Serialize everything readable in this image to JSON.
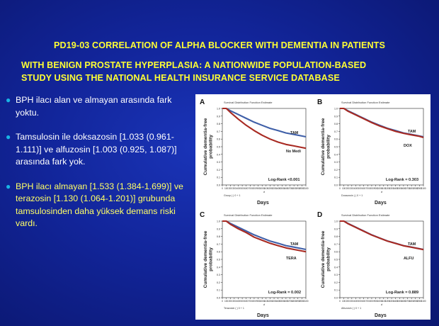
{
  "title": {
    "line1": "PD19-03    CORRELATION OF ALPHA BLOCKER WITH DEMENTIA IN PATIENTS",
    "line2": "WITH BENIGN PROSTATE HYPERPLASIA: A NATIONWIDE POPULATION-BASED",
    "line3": "STUDY USING THE NATIONAL HEALTH INSURANCE SERVICE DATABASE"
  },
  "bullets": [
    {
      "text": "BPH ilacı alan ve almayan arasında fark yoktu."
    },
    {
      "text": "Tamsulosin ile doksazosin [1.033 (0.961-1.111)] ve alfuzosin [1.003 (0.925, 1.087)] arasında fark yok."
    },
    {
      "text": " BPH ilacı almayan [1.533 (1.384-1.699)] ve terazosin [1.130 (1.064-1.201)] grubunda tamsulosinden daha yüksek demans riski vardı."
    }
  ],
  "colors": {
    "accent_title": "#ffff33",
    "bullet_dot": "#19b5e6",
    "tam": "#3f5fa8",
    "other": "#a82a22"
  },
  "chart_data": [
    {
      "type": "line",
      "panel": "A",
      "header": "Survival Distribution Function Estimate",
      "ylabel": "Cumulative dementia-free probability",
      "xlabel": "Days",
      "series": [
        {
          "name": "TAM",
          "x": [
            0,
            100,
            200,
            400,
            600,
            800,
            1000,
            1200,
            1400,
            1600,
            1800,
            2000,
            2100
          ],
          "y": [
            1.0,
            1.0,
            0.97,
            0.92,
            0.87,
            0.82,
            0.78,
            0.74,
            0.71,
            0.68,
            0.66,
            0.64,
            0.63
          ]
        },
        {
          "name": "No Medi",
          "x": [
            0,
            100,
            200,
            400,
            600,
            800,
            1000,
            1200,
            1400,
            1600,
            1800,
            2000,
            2100
          ],
          "y": [
            1.0,
            1.0,
            0.95,
            0.86,
            0.78,
            0.71,
            0.65,
            0.6,
            0.56,
            0.53,
            0.51,
            0.49,
            0.48
          ]
        }
      ],
      "annotation": "Log-Rank <0.001",
      "stratum": "Group ( ) 0 + 1"
    },
    {
      "type": "line",
      "panel": "B",
      "header": "Survival Distribution Function Estimate",
      "ylabel": "Cumulative dementia-free probability",
      "xlabel": "Days",
      "series": [
        {
          "name": "TAM",
          "x": [
            0,
            100,
            200,
            400,
            600,
            800,
            1000,
            1200,
            1400,
            1600,
            1800,
            2000,
            2100
          ],
          "y": [
            1.0,
            1.0,
            0.97,
            0.92,
            0.87,
            0.82,
            0.78,
            0.74,
            0.71,
            0.68,
            0.66,
            0.64,
            0.63
          ]
        },
        {
          "name": "DOX",
          "x": [
            0,
            100,
            200,
            400,
            600,
            800,
            1000,
            1200,
            1400,
            1600,
            1800,
            2000,
            2100
          ],
          "y": [
            1.0,
            1.0,
            0.965,
            0.915,
            0.865,
            0.815,
            0.77,
            0.735,
            0.7,
            0.675,
            0.655,
            0.635,
            0.62
          ]
        }
      ],
      "annotation": "Log-Rank = 0.303",
      "stratum": "Doxazosin ( ) 0 + 1"
    },
    {
      "type": "line",
      "panel": "C",
      "header": "Survival Distribution Function Estimate",
      "ylabel": "Cumulative dementia-free probability",
      "xlabel": "Days",
      "series": [
        {
          "name": "TAM",
          "x": [
            0,
            100,
            200,
            400,
            600,
            800,
            1000,
            1200,
            1400,
            1600,
            1800,
            2000,
            2100
          ],
          "y": [
            1.0,
            1.0,
            0.97,
            0.92,
            0.87,
            0.82,
            0.78,
            0.74,
            0.71,
            0.68,
            0.66,
            0.64,
            0.63
          ]
        },
        {
          "name": "TERA",
          "x": [
            0,
            100,
            200,
            400,
            600,
            800,
            1000,
            1200,
            1400,
            1600,
            1800,
            2000,
            2100
          ],
          "y": [
            1.0,
            1.0,
            0.96,
            0.9,
            0.85,
            0.79,
            0.75,
            0.71,
            0.68,
            0.65,
            0.63,
            0.61,
            0.6
          ]
        }
      ],
      "annotation": "Log-Rank = 0.002",
      "stratum": "Terazosin ( ) 0 + 1"
    },
    {
      "type": "line",
      "panel": "D",
      "header": "Survival Distribution Function Estimate",
      "ylabel": "Cumulative dementia-free probability",
      "xlabel": "Days",
      "series": [
        {
          "name": "TAM",
          "x": [
            0,
            100,
            200,
            400,
            600,
            800,
            1000,
            1200,
            1400,
            1600,
            1800,
            2000,
            2100
          ],
          "y": [
            1.0,
            1.0,
            0.97,
            0.92,
            0.87,
            0.82,
            0.78,
            0.74,
            0.71,
            0.68,
            0.66,
            0.64,
            0.63
          ]
        },
        {
          "name": "ALFU",
          "x": [
            0,
            100,
            200,
            400,
            600,
            800,
            1000,
            1200,
            1400,
            1600,
            1800,
            2000,
            2100
          ],
          "y": [
            1.0,
            1.0,
            0.968,
            0.918,
            0.868,
            0.818,
            0.778,
            0.738,
            0.708,
            0.678,
            0.658,
            0.638,
            0.628
          ]
        }
      ],
      "annotation": "Log-Rank = 0.889",
      "stratum": "Alfuzosin ( ) 0 + 1"
    }
  ],
  "axis": {
    "ylim": [
      0.0,
      1.0
    ],
    "xlim": [
      0,
      2100
    ],
    "yticks": [
      "0.0",
      "0.1",
      "0.2",
      "0.3",
      "0.4",
      "0.5",
      "0.6",
      "0.7",
      "0.8",
      "0.9",
      "1.0"
    ],
    "xticks": [
      "0",
      "100",
      "200",
      "300",
      "400",
      "500",
      "600",
      "700",
      "800",
      "900",
      "1000",
      "1100",
      "1200",
      "1300",
      "1400",
      "1500",
      "1600",
      "1700",
      "1800",
      "1900",
      "2000",
      "2100"
    ]
  }
}
